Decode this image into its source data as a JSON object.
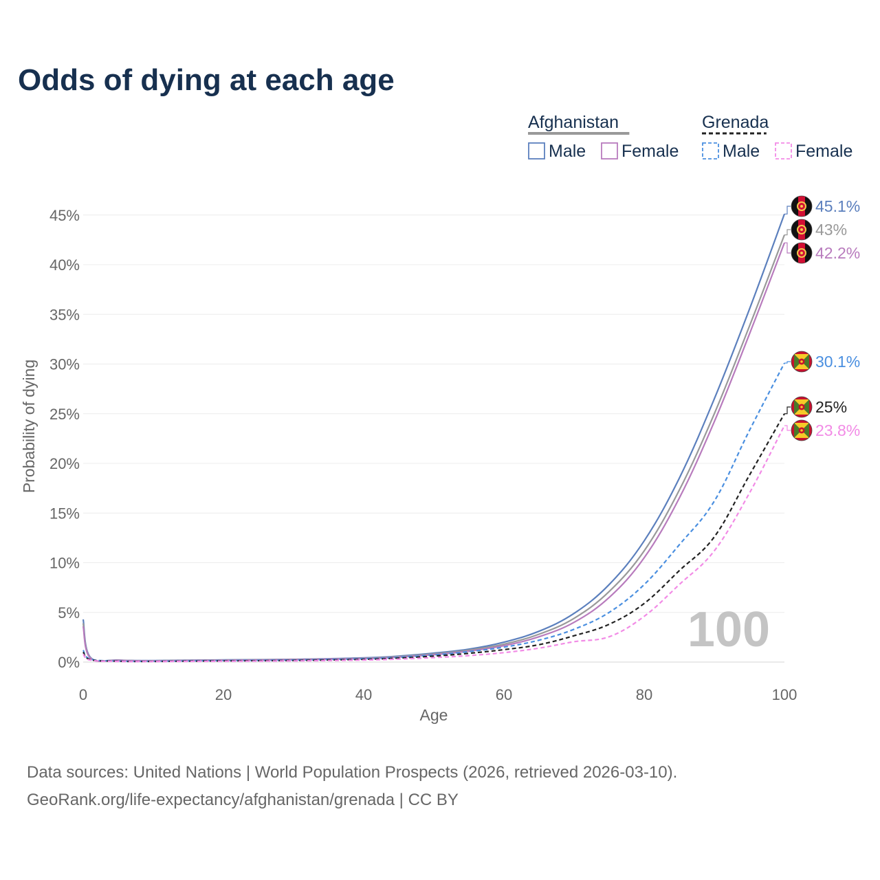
{
  "chart_data": {
    "type": "line",
    "title": "Odds of dying at each age",
    "xlabel": "Age",
    "ylabel": "Probability of dying",
    "xlim": [
      0,
      100
    ],
    "ylim": [
      0,
      47
    ],
    "x_ticks": [
      0,
      20,
      40,
      60,
      80,
      100
    ],
    "x_tick_labels": [
      "0",
      "20",
      "40",
      "60",
      "80",
      "100"
    ],
    "y_ticks": [
      0,
      5,
      10,
      15,
      20,
      25,
      30,
      35,
      40,
      45
    ],
    "y_tick_labels": [
      "0%",
      "5%",
      "10%",
      "15%",
      "20%",
      "25%",
      "30%",
      "35%",
      "40%",
      "45%"
    ],
    "grid": true,
    "watermark": "100",
    "legend": {
      "position": "top-right",
      "groups": [
        {
          "country": "Afghanistan",
          "style": "solid",
          "color": "#999999",
          "items": [
            {
              "label": "Male",
              "color": "#5b7fbd"
            },
            {
              "label": "Female",
              "color": "#b87bbd"
            }
          ]
        },
        {
          "country": "Grenada",
          "style": "dashed",
          "color": "#222222",
          "items": [
            {
              "label": "Male",
              "color": "#4a8fe0"
            },
            {
              "label": "Female",
              "color": "#f28be6"
            }
          ]
        }
      ]
    },
    "series": [
      {
        "name": "Afghanistan Male",
        "country": "Afghanistan",
        "dashed": false,
        "color": "#5b7fbd",
        "end_label": "45.1%",
        "flag": "afghanistan",
        "points": [
          [
            0,
            4.3
          ],
          [
            1,
            0.5
          ],
          [
            5,
            0.2
          ],
          [
            10,
            0.15
          ],
          [
            20,
            0.22
          ],
          [
            30,
            0.28
          ],
          [
            40,
            0.42
          ],
          [
            45,
            0.6
          ],
          [
            50,
            0.9
          ],
          [
            55,
            1.3
          ],
          [
            60,
            2.0
          ],
          [
            65,
            3.1
          ],
          [
            70,
            4.9
          ],
          [
            75,
            7.8
          ],
          [
            80,
            12.2
          ],
          [
            85,
            18.5
          ],
          [
            90,
            26.5
          ],
          [
            95,
            35.5
          ],
          [
            100,
            45.1
          ]
        ]
      },
      {
        "name": "Afghanistan Total",
        "country": "Afghanistan",
        "dashed": false,
        "color": "#999999",
        "end_label": "43%",
        "flag": "afghanistan",
        "points": [
          [
            0,
            3.9
          ],
          [
            1,
            0.45
          ],
          [
            5,
            0.18
          ],
          [
            10,
            0.13
          ],
          [
            20,
            0.2
          ],
          [
            30,
            0.26
          ],
          [
            40,
            0.38
          ],
          [
            45,
            0.55
          ],
          [
            50,
            0.82
          ],
          [
            55,
            1.2
          ],
          [
            60,
            1.8
          ],
          [
            65,
            2.8
          ],
          [
            70,
            4.4
          ],
          [
            75,
            7.1
          ],
          [
            80,
            11.2
          ],
          [
            85,
            17.3
          ],
          [
            90,
            25.0
          ],
          [
            95,
            33.8
          ],
          [
            100,
            43.0
          ]
        ]
      },
      {
        "name": "Afghanistan Female",
        "country": "Afghanistan",
        "dashed": false,
        "color": "#b87bbd",
        "end_label": "42.2%",
        "flag": "afghanistan",
        "points": [
          [
            0,
            3.6
          ],
          [
            1,
            0.42
          ],
          [
            5,
            0.17
          ],
          [
            10,
            0.12
          ],
          [
            20,
            0.18
          ],
          [
            30,
            0.24
          ],
          [
            40,
            0.35
          ],
          [
            45,
            0.5
          ],
          [
            50,
            0.75
          ],
          [
            55,
            1.1
          ],
          [
            60,
            1.65
          ],
          [
            65,
            2.55
          ],
          [
            70,
            4.0
          ],
          [
            75,
            6.5
          ],
          [
            80,
            10.5
          ],
          [
            85,
            16.5
          ],
          [
            90,
            24.2
          ],
          [
            95,
            33.0
          ],
          [
            100,
            42.2
          ]
        ]
      },
      {
        "name": "Grenada Male",
        "country": "Grenada",
        "dashed": true,
        "color": "#4a8fe0",
        "end_label": "30.1%",
        "flag": "grenada",
        "points": [
          [
            0,
            1.2
          ],
          [
            1,
            0.3
          ],
          [
            5,
            0.1
          ],
          [
            10,
            0.08
          ],
          [
            20,
            0.15
          ],
          [
            30,
            0.2
          ],
          [
            40,
            0.33
          ],
          [
            45,
            0.48
          ],
          [
            50,
            0.72
          ],
          [
            55,
            1.05
          ],
          [
            60,
            1.5
          ],
          [
            65,
            2.2
          ],
          [
            70,
            3.3
          ],
          [
            75,
            5.0
          ],
          [
            80,
            7.8
          ],
          [
            85,
            11.8
          ],
          [
            90,
            16.2
          ],
          [
            95,
            23.3
          ],
          [
            100,
            30.1
          ]
        ]
      },
      {
        "name": "Grenada Total",
        "country": "Grenada",
        "dashed": true,
        "color": "#222222",
        "end_label": "25%",
        "flag": "grenada",
        "points": [
          [
            0,
            1.0
          ],
          [
            1,
            0.25
          ],
          [
            5,
            0.08
          ],
          [
            10,
            0.06
          ],
          [
            20,
            0.12
          ],
          [
            30,
            0.16
          ],
          [
            40,
            0.27
          ],
          [
            45,
            0.4
          ],
          [
            50,
            0.6
          ],
          [
            55,
            0.88
          ],
          [
            60,
            1.25
          ],
          [
            65,
            1.75
          ],
          [
            70,
            2.65
          ],
          [
            75,
            3.8
          ],
          [
            80,
            5.9
          ],
          [
            85,
            9.2
          ],
          [
            90,
            12.6
          ],
          [
            95,
            18.8
          ],
          [
            100,
            25.0
          ]
        ]
      },
      {
        "name": "Grenada Female",
        "country": "Grenada",
        "dashed": true,
        "color": "#f28be6",
        "end_label": "23.8%",
        "flag": "grenada",
        "points": [
          [
            0,
            0.8
          ],
          [
            1,
            0.2
          ],
          [
            5,
            0.06
          ],
          [
            10,
            0.05
          ],
          [
            20,
            0.08
          ],
          [
            30,
            0.12
          ],
          [
            40,
            0.2
          ],
          [
            45,
            0.3
          ],
          [
            50,
            0.45
          ],
          [
            55,
            0.65
          ],
          [
            60,
            0.95
          ],
          [
            65,
            1.4
          ],
          [
            70,
            2.05
          ],
          [
            75,
            2.55
          ],
          [
            80,
            4.6
          ],
          [
            85,
            7.8
          ],
          [
            90,
            11.2
          ],
          [
            95,
            17.0
          ],
          [
            100,
            23.8
          ]
        ]
      }
    ]
  },
  "source": {
    "line1": "Data sources: United Nations | World Population Prospects (2026, retrieved 2026-03-10).",
    "line2": "GeoRank.org/life-expectancy/afghanistan/grenada | CC BY"
  }
}
